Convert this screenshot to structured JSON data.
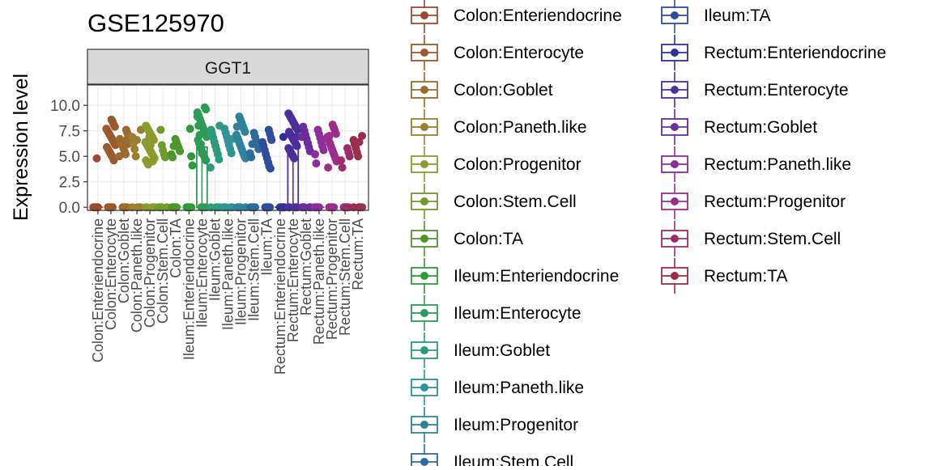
{
  "chart_data": {
    "type": "scatter",
    "subtype": "jittered-strip-with-boxplot",
    "title": "GSE125970",
    "panel_label": "GGT1",
    "xlabel": "",
    "ylabel": "Expression level",
    "ylim": [
      -0.3,
      12.0
    ],
    "yticks": [
      0.0,
      2.5,
      5.0,
      7.5,
      10.0
    ],
    "ytick_labels": [
      "0.0",
      "2.5",
      "5.0",
      "7.5",
      "10.0"
    ],
    "grid": true,
    "legend_position": "right",
    "categories": [
      "Colon:Enteriendocrine",
      "Colon:Enterocyte",
      "Colon:Goblet",
      "Colon:Paneth.like",
      "Colon:Progenitor",
      "Colon:Stem.Cell",
      "Colon:TA",
      "Ileum:Enteriendocrine",
      "Ileum:Enterocyte",
      "Ileum:Goblet",
      "Ileum:Paneth.like",
      "Ileum:Progenitor",
      "Ileum:Stem.Cell",
      "Ileum:TA",
      "Rectum:Enteriendocrine",
      "Rectum:Enterocyte",
      "Rectum:Goblet",
      "Rectum:Paneth.like",
      "Rectum:Progenitor",
      "Rectum:Stem.Cell",
      "Rectum:TA"
    ],
    "colors": [
      "#9a4a2e",
      "#9a5a2e",
      "#9a6a2e",
      "#9a7f2e",
      "#8c9a2e",
      "#6f9a2e",
      "#4f952e",
      "#2e9a3a",
      "#2e9a57",
      "#2e9a7a",
      "#2e9494",
      "#2e829a",
      "#2e6a9a",
      "#2e4e9a",
      "#2e309a",
      "#4c2e9a",
      "#6a2e9a",
      "#8a2e9a",
      "#9a2e8a",
      "#9a2e6c",
      "#9a2e4c"
    ],
    "series": [
      {
        "name": "Colon:Enteriendocrine",
        "zero_fraction": 0.97,
        "positive_values": [
          4.8
        ]
      },
      {
        "name": "Colon:Enterocyte",
        "zero_fraction": 0.6,
        "positive_values": [
          8.6,
          8.4,
          8.1,
          7.9,
          7.7,
          7.5,
          7.3,
          7.1,
          6.9,
          6.7,
          6.5,
          6.3,
          6.1,
          5.9,
          5.7,
          5.5,
          5.3,
          5.1,
          4.9,
          4.6
        ]
      },
      {
        "name": "Colon:Goblet",
        "zero_fraction": 0.7,
        "positive_values": [
          7.6,
          7.3,
          7.0,
          6.7,
          6.4,
          6.1,
          5.8,
          5.5,
          5.2,
          6.6,
          6.2,
          5.0
        ]
      },
      {
        "name": "Colon:Paneth.like",
        "zero_fraction": 0.8,
        "positive_values": [
          7.6,
          6.9,
          6.3,
          5.7,
          5.0,
          6.6
        ]
      },
      {
        "name": "Colon:Progenitor",
        "zero_fraction": 0.55,
        "positive_values": [
          8.0,
          7.8,
          7.6,
          7.4,
          7.2,
          7.0,
          6.8,
          6.6,
          6.4,
          6.2,
          6.0,
          5.8,
          5.6,
          5.4,
          5.2,
          5.0,
          4.8,
          4.6,
          4.4,
          4.2,
          6.9,
          6.1,
          5.3,
          4.5
        ]
      },
      {
        "name": "Colon:Stem.Cell",
        "zero_fraction": 0.75,
        "positive_values": [
          7.6,
          6.1,
          5.6,
          5.2,
          4.9
        ]
      },
      {
        "name": "Colon:TA",
        "zero_fraction": 0.7,
        "positive_values": [
          6.7,
          6.4,
          6.1,
          5.8,
          5.5,
          5.2,
          4.9,
          6.0
        ]
      },
      {
        "name": "Ileum:Enteriendocrine",
        "zero_fraction": 0.85,
        "positive_values": [
          7.7,
          5.0,
          4.1
        ]
      },
      {
        "name": "Ileum:Enterocyte",
        "zero_fraction": 0.4,
        "positive_values": [
          9.8,
          9.6,
          9.3,
          9.0,
          8.7,
          8.4,
          8.1,
          7.8,
          7.5,
          7.2,
          6.9,
          6.6,
          6.3,
          6.0,
          5.7,
          5.4,
          5.1,
          4.8,
          4.6,
          8.9,
          8.0,
          7.1,
          6.2,
          5.3
        ]
      },
      {
        "name": "Ileum:Goblet",
        "zero_fraction": 0.7,
        "positive_values": [
          8.0,
          7.6,
          7.2,
          6.8,
          6.4,
          6.0,
          5.6,
          5.2,
          4.7,
          3.9,
          7.4
        ]
      },
      {
        "name": "Ileum:Paneth.like",
        "zero_fraction": 0.75,
        "positive_values": [
          7.7,
          7.3,
          6.9,
          6.5,
          6.1,
          5.7,
          5.3,
          6.7
        ]
      },
      {
        "name": "Ileum:Progenitor",
        "zero_fraction": 0.55,
        "positive_values": [
          8.9,
          8.6,
          8.3,
          8.0,
          7.7,
          7.4,
          7.1,
          6.8,
          6.5,
          6.2,
          5.9,
          5.6,
          5.3,
          5.0,
          4.8,
          7.9,
          6.6
        ]
      },
      {
        "name": "Ileum:Stem.Cell",
        "zero_fraction": 0.7,
        "positive_values": [
          7.3,
          6.9,
          6.5,
          6.1,
          5.7,
          5.3,
          4.9,
          6.2
        ]
      },
      {
        "name": "Ileum:TA",
        "zero_fraction": 0.6,
        "positive_values": [
          7.6,
          7.2,
          6.8,
          6.4,
          6.0,
          5.6,
          5.2,
          4.8,
          4.4,
          4.0,
          3.8,
          6.6
        ]
      },
      {
        "name": "Rectum:Enteriendocrine",
        "zero_fraction": 0.95,
        "positive_values": [
          6.9
        ]
      },
      {
        "name": "Rectum:Enterocyte",
        "zero_fraction": 0.4,
        "positive_values": [
          9.2,
          9.0,
          8.8,
          8.6,
          8.4,
          8.2,
          8.0,
          7.8,
          7.6,
          7.4,
          7.2,
          7.0,
          6.8,
          6.6,
          6.4,
          6.2,
          6.0,
          5.8,
          5.6,
          5.4,
          5.2,
          5.0,
          4.8,
          7.9,
          6.9
        ]
      },
      {
        "name": "Rectum:Goblet",
        "zero_fraction": 0.7,
        "positive_values": [
          7.9,
          7.5,
          7.1,
          6.7,
          6.3,
          5.9,
          5.5,
          6.9
        ]
      },
      {
        "name": "Rectum:Paneth.like",
        "zero_fraction": 0.75,
        "positive_values": [
          7.6,
          7.2,
          6.8,
          6.4,
          6.0,
          5.6,
          5.2,
          4.3
        ]
      },
      {
        "name": "Rectum:Progenitor",
        "zero_fraction": 0.6,
        "positive_values": [
          8.1,
          7.8,
          7.5,
          7.2,
          6.9,
          6.6,
          6.3,
          6.0,
          5.7,
          5.4,
          5.1,
          4.8,
          4.5,
          3.9,
          7.0
        ]
      },
      {
        "name": "Rectum:Stem.Cell",
        "zero_fraction": 0.8,
        "positive_values": [
          5.8,
          5.4,
          5.0,
          4.6,
          3.9
        ]
      },
      {
        "name": "Rectum:TA",
        "zero_fraction": 0.75,
        "positive_values": [
          7.0,
          6.6,
          6.2,
          5.8,
          5.4,
          5.0,
          6.4
        ]
      }
    ],
    "tall_boxes": [
      {
        "category": "Ileum:Enterocyte",
        "upper_whisker": 5.9,
        "q3": 0.0
      },
      {
        "category": "Rectum:Enterocyte",
        "upper_whisker": 5.9,
        "q3": 0.0
      }
    ]
  }
}
